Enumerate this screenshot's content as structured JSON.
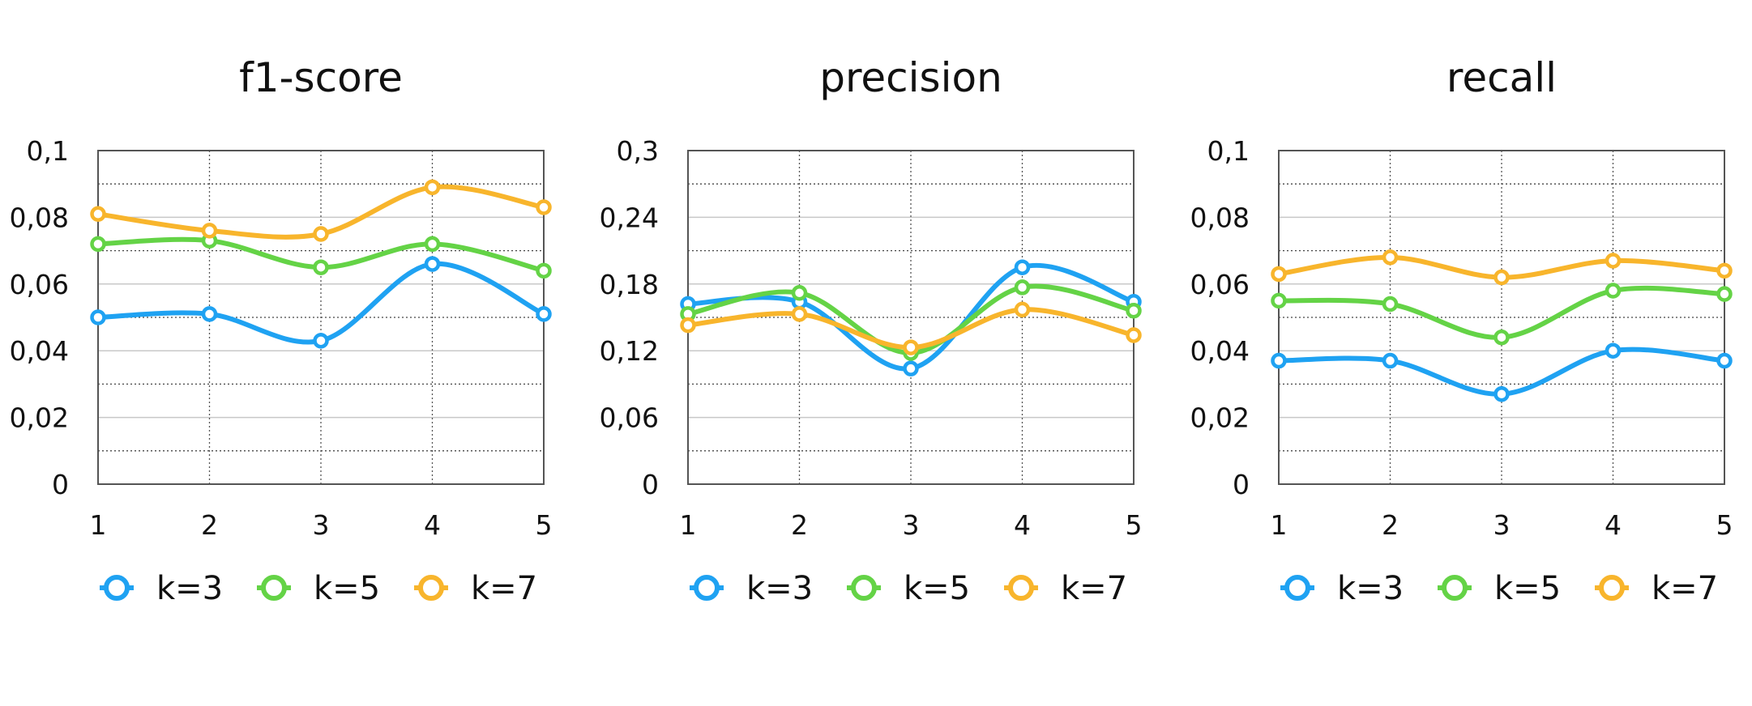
{
  "colors": {
    "k3": "#1fa2f2",
    "k5": "#64d346",
    "k7": "#f8b52c"
  },
  "legend": [
    "k=3",
    "k=5",
    "k=7"
  ],
  "chart_data": [
    {
      "type": "line",
      "title": "f1-score",
      "x": [
        1,
        2,
        3,
        4,
        5
      ],
      "ylim": [
        0,
        0.1
      ],
      "y_ticks": [
        "0",
        "0,02",
        "0,04",
        "0,06",
        "0,08",
        "0,1"
      ],
      "x_ticks": [
        "1",
        "2",
        "3",
        "4",
        "5"
      ],
      "grid": true,
      "legend_position": "bottom",
      "series": [
        {
          "name": "k=3",
          "values": [
            0.05,
            0.051,
            0.043,
            0.066,
            0.051
          ]
        },
        {
          "name": "k=5",
          "values": [
            0.072,
            0.073,
            0.065,
            0.072,
            0.064
          ]
        },
        {
          "name": "k=7",
          "values": [
            0.081,
            0.076,
            0.075,
            0.089,
            0.083
          ]
        }
      ]
    },
    {
      "type": "line",
      "title": "precision",
      "x": [
        1,
        2,
        3,
        4,
        5
      ],
      "ylim": [
        0,
        0.3
      ],
      "y_ticks": [
        "0",
        "0,06",
        "0,12",
        "0,18",
        "0,24",
        "0,3"
      ],
      "x_ticks": [
        "1",
        "2",
        "3",
        "4",
        "5"
      ],
      "grid": true,
      "legend_position": "bottom",
      "series": [
        {
          "name": "k=3",
          "values": [
            0.162,
            0.164,
            0.104,
            0.195,
            0.164
          ]
        },
        {
          "name": "k=5",
          "values": [
            0.153,
            0.172,
            0.118,
            0.177,
            0.156
          ]
        },
        {
          "name": "k=7",
          "values": [
            0.143,
            0.153,
            0.123,
            0.157,
            0.134
          ]
        }
      ]
    },
    {
      "type": "line",
      "title": "recall",
      "x": [
        1,
        2,
        3,
        4,
        5
      ],
      "ylim": [
        0,
        0.1
      ],
      "y_ticks": [
        "0",
        "0,02",
        "0,04",
        "0,06",
        "0,08",
        "0,1"
      ],
      "x_ticks": [
        "1",
        "2",
        "3",
        "4",
        "5"
      ],
      "grid": true,
      "legend_position": "bottom",
      "series": [
        {
          "name": "k=3",
          "values": [
            0.037,
            0.037,
            0.027,
            0.04,
            0.037
          ]
        },
        {
          "name": "k=5",
          "values": [
            0.055,
            0.054,
            0.044,
            0.058,
            0.057
          ]
        },
        {
          "name": "k=7",
          "values": [
            0.063,
            0.068,
            0.062,
            0.067,
            0.064
          ]
        }
      ]
    }
  ]
}
